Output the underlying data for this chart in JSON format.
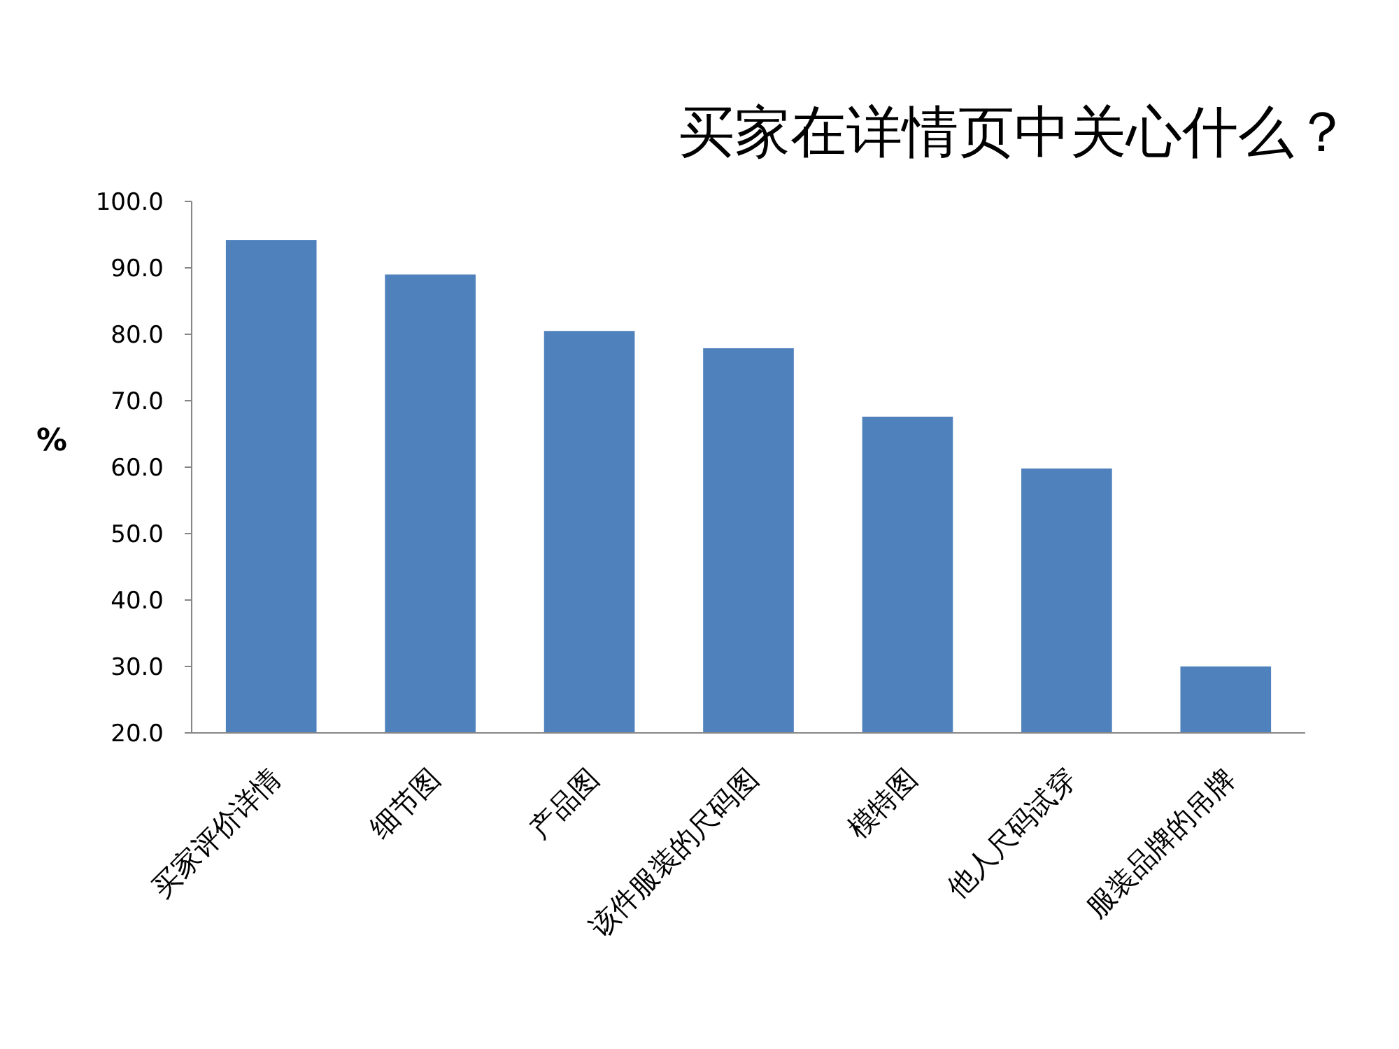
{
  "chart_data": {
    "type": "bar",
    "title": "买家在详情页中关心什么？",
    "ylabel": "%",
    "categories": [
      "买家评价详情",
      "细节图",
      "产品图",
      "该件服装的尺码图",
      "模特图",
      "他人尺码试穿",
      "服装品牌的吊牌"
    ],
    "values": [
      94.2,
      89.0,
      80.5,
      77.9,
      67.6,
      59.8,
      30.0
    ],
    "color": "#4f81bd",
    "ylim": [
      20,
      100
    ],
    "yticks": [
      {
        "value": 20,
        "label": "20.0"
      },
      {
        "value": 30,
        "label": "30.0"
      },
      {
        "value": 40,
        "label": "40.0"
      },
      {
        "value": 50,
        "label": "50.0"
      },
      {
        "value": 60,
        "label": "60.0"
      },
      {
        "value": 70,
        "label": "70.0"
      },
      {
        "value": 80,
        "label": "80.0"
      },
      {
        "value": 90,
        "label": "90.0"
      },
      {
        "value": 100,
        "label": "100.0"
      }
    ],
    "grid": false
  }
}
